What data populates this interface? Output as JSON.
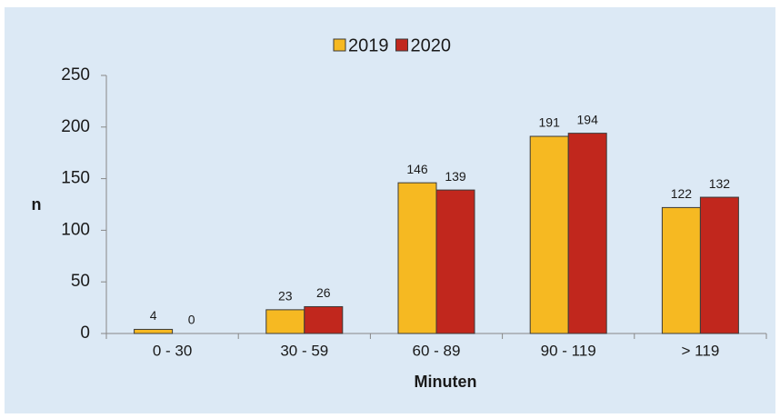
{
  "chart_data": {
    "type": "bar",
    "categories": [
      "0 - 30",
      "30 - 59",
      "60 - 89",
      "90 - 119",
      "> 119"
    ],
    "series": [
      {
        "name": "2019",
        "color": "#f6b922",
        "values": [
          4,
          23,
          146,
          191,
          122
        ]
      },
      {
        "name": "2020",
        "color": "#c1271d",
        "values": [
          0,
          26,
          139,
          194,
          132
        ]
      }
    ],
    "xlabel": "Minuten",
    "ylabel": "n",
    "ylim": [
      0,
      250
    ],
    "yticks": [
      0,
      50,
      100,
      150,
      200,
      250
    ],
    "grid": false,
    "legend": "top"
  }
}
